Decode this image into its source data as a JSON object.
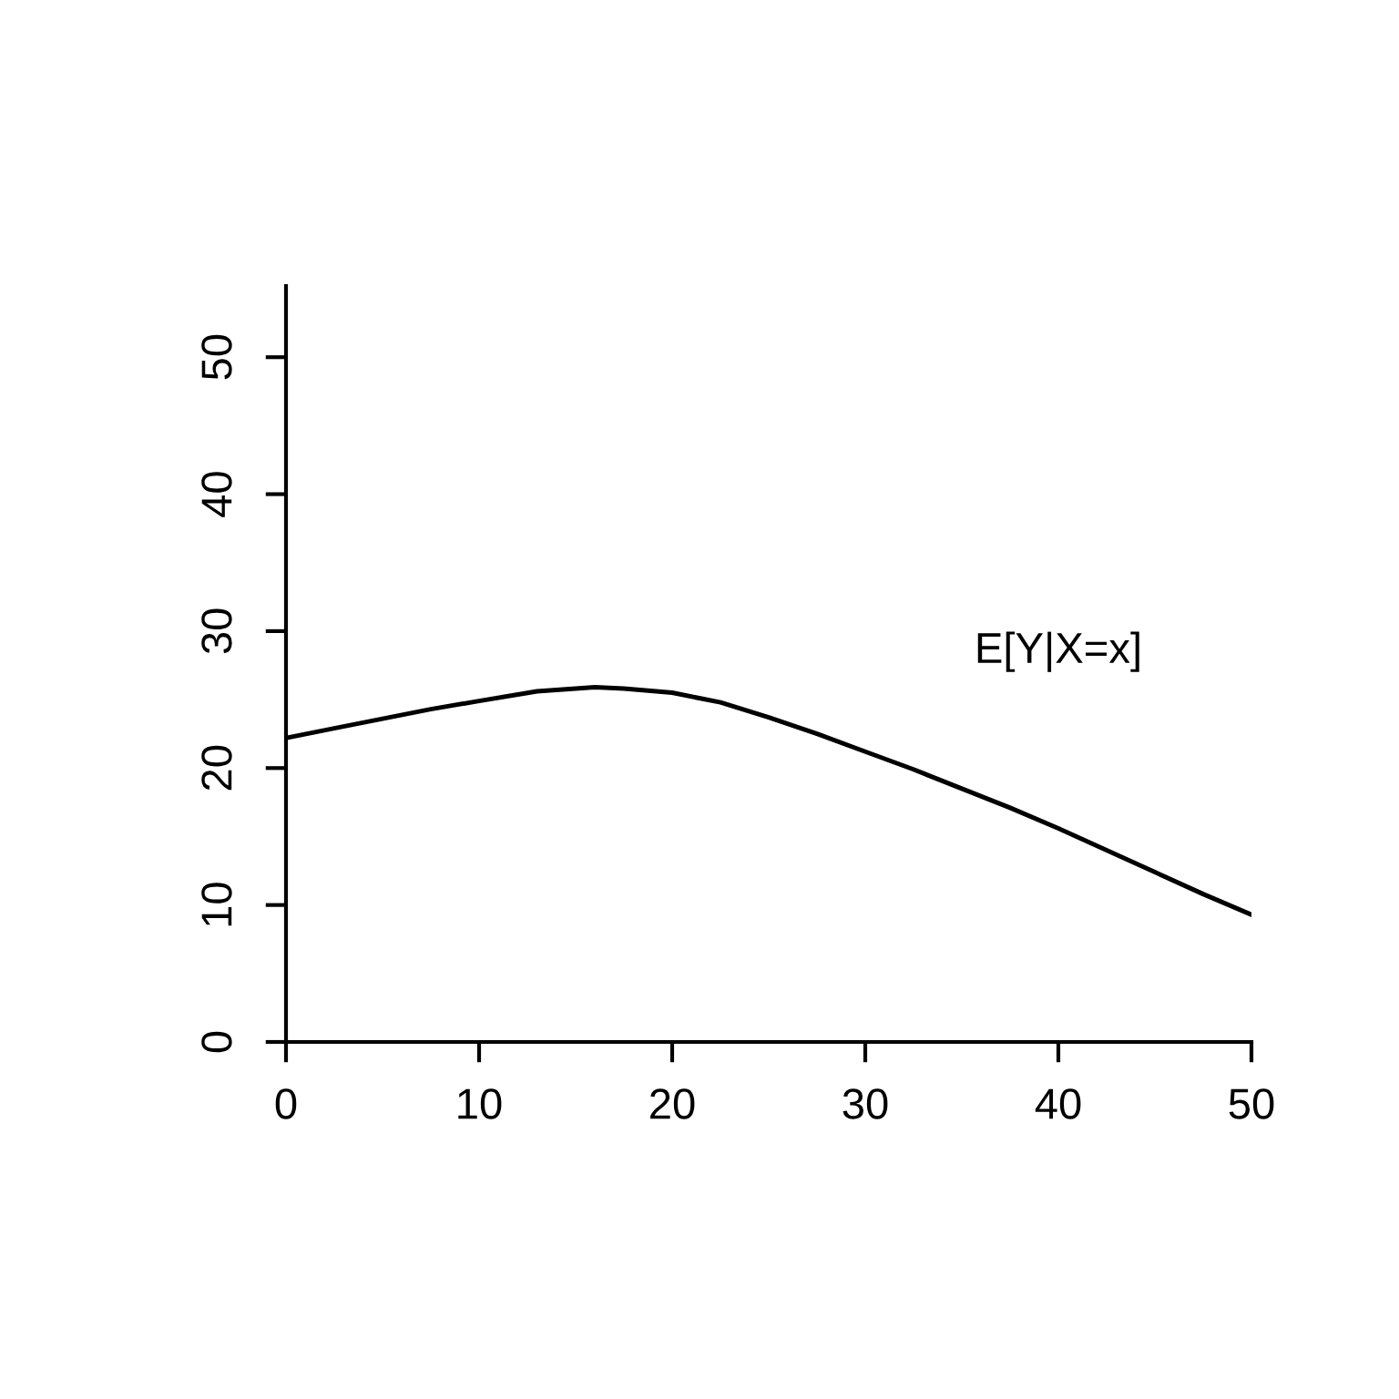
{
  "chart_data": {
    "type": "line",
    "x": [
      0,
      2.5,
      5,
      7.5,
      10,
      13,
      16,
      17.5,
      20,
      22.5,
      25,
      27.5,
      30,
      32.5,
      35,
      37.5,
      40,
      42.5,
      45,
      47.5,
      50
    ],
    "values": [
      22.2,
      22.9,
      23.6,
      24.3,
      24.9,
      25.6,
      25.9,
      25.8,
      25.5,
      24.8,
      23.7,
      22.5,
      21.2,
      19.9,
      18.5,
      17.1,
      15.6,
      14.0,
      12.4,
      10.8,
      9.3
    ],
    "color": "#000000",
    "xlim": [
      0,
      50
    ],
    "ylim": [
      0,
      55.2
    ],
    "xticks": [
      0,
      10,
      20,
      30,
      40,
      50
    ],
    "yticks": [
      0,
      10,
      20,
      30,
      40,
      50
    ],
    "grid": false,
    "legend": false,
    "marker": "none",
    "line_style": "solid",
    "annotations": [
      "E[Y|X=x]"
    ]
  }
}
